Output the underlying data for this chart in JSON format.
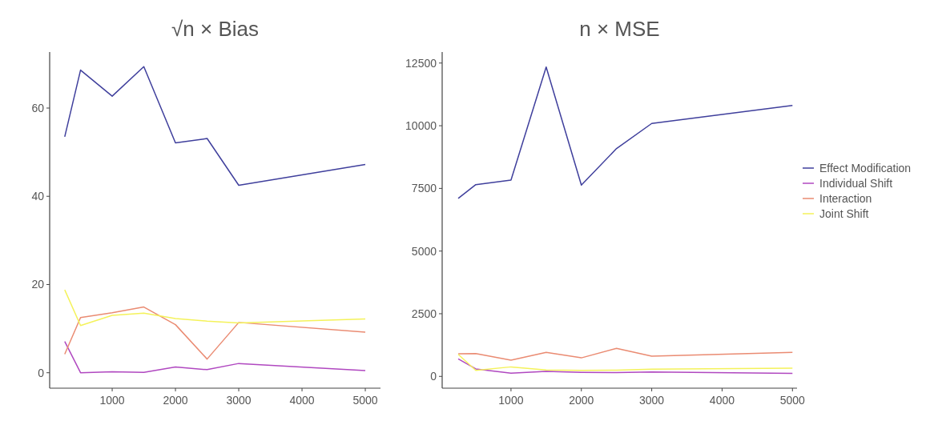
{
  "chart_data": [
    {
      "type": "line",
      "title": "√n × Bias",
      "x": [
        250,
        500,
        1000,
        1500,
        2000,
        2500,
        3000,
        5000
      ],
      "xlim": [
        12,
        5240
      ],
      "xticks": [
        1000,
        2000,
        3000,
        4000,
        5000
      ],
      "ylim": [
        -3.5,
        72.7
      ],
      "yticks": [
        0,
        20,
        40,
        60
      ],
      "grid": false,
      "legend": false,
      "series": [
        {
          "color": "#3f3f9c",
          "values": [
            53.5,
            68.6,
            62.7,
            69.4,
            52.1,
            53.1,
            42.5,
            47.2
          ]
        },
        {
          "color": "#b048c0",
          "values": [
            7.1,
            0,
            0.2,
            0.1,
            1.3,
            0.7,
            2.1,
            0.5
          ]
        },
        {
          "color": "#ea8b72",
          "values": [
            4.2,
            12.5,
            13.6,
            14.9,
            10.9,
            3.1,
            11.4,
            9.2
          ]
        },
        {
          "color": "#f4f25a",
          "values": [
            18.8,
            10.7,
            13.0,
            13.5,
            12.3,
            11.7,
            11.3,
            12.2
          ]
        }
      ]
    },
    {
      "type": "line",
      "title": "n × MSE",
      "x": [
        250,
        500,
        1000,
        1500,
        2000,
        2500,
        3000,
        5000
      ],
      "xlim": [
        22,
        5065
      ],
      "xticks": [
        1000,
        2000,
        3000,
        4000,
        5000
      ],
      "ylim": [
        -470,
        12940
      ],
      "yticks": [
        0,
        2500,
        5000,
        7500,
        10000,
        12500
      ],
      "grid": false,
      "legend": "right",
      "series": [
        {
          "name": "Effect Modification",
          "color": "#3f3f9c",
          "values": [
            7100,
            7650,
            7830,
            12340,
            7630,
            9090,
            10090,
            10810
          ]
        },
        {
          "name": "Individual Shift",
          "color": "#b048c0",
          "values": [
            700,
            300,
            130,
            200,
            160,
            150,
            180,
            120
          ]
        },
        {
          "name": "Interaction",
          "color": "#ea8b72",
          "values": [
            900,
            910,
            650,
            960,
            740,
            1120,
            810,
            960
          ]
        },
        {
          "name": "Joint Shift",
          "color": "#f4f25a",
          "values": [
            880,
            240,
            380,
            260,
            240,
            250,
            290,
            330
          ]
        }
      ]
    }
  ]
}
